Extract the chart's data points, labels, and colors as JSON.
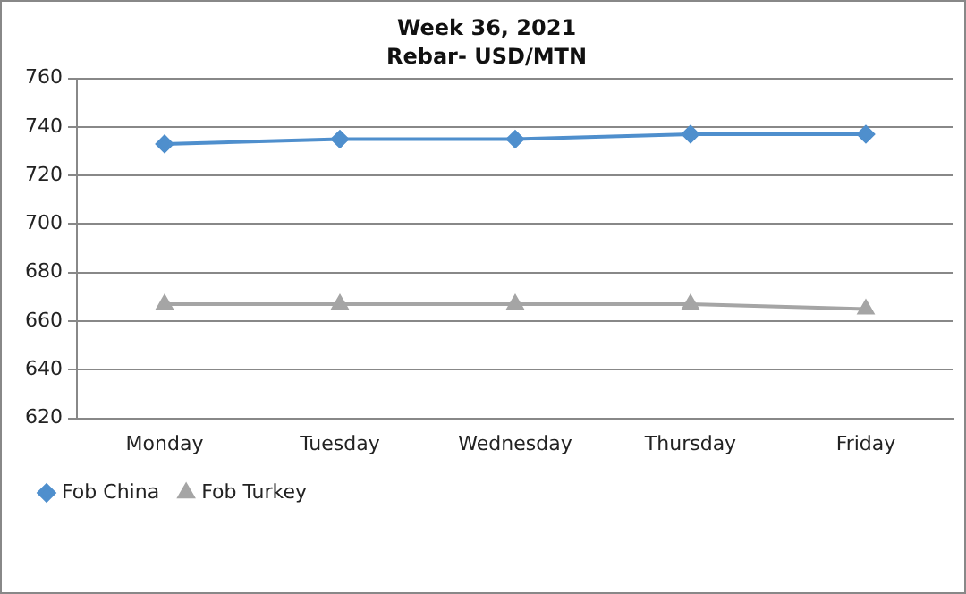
{
  "chart_data": {
    "type": "line",
    "title": "Week 36, 2021",
    "subtitle": "Rebar- USD/MTN",
    "categories": [
      "Monday",
      "Tuesday",
      "Wednesday",
      "Thursday",
      "Friday"
    ],
    "series": [
      {
        "name": "Fob China",
        "color": "#4f8fcd",
        "marker": "diamond",
        "values": [
          733,
          735,
          735,
          737,
          737
        ]
      },
      {
        "name": "Fob Turkey",
        "color": "#a5a5a5",
        "marker": "triangle",
        "values": [
          667,
          667,
          667,
          667,
          665
        ]
      }
    ],
    "ylim": [
      620,
      760
    ],
    "yticks": [
      620,
      640,
      660,
      680,
      700,
      720,
      740,
      760
    ],
    "grid": "y",
    "legend": "bottom"
  }
}
